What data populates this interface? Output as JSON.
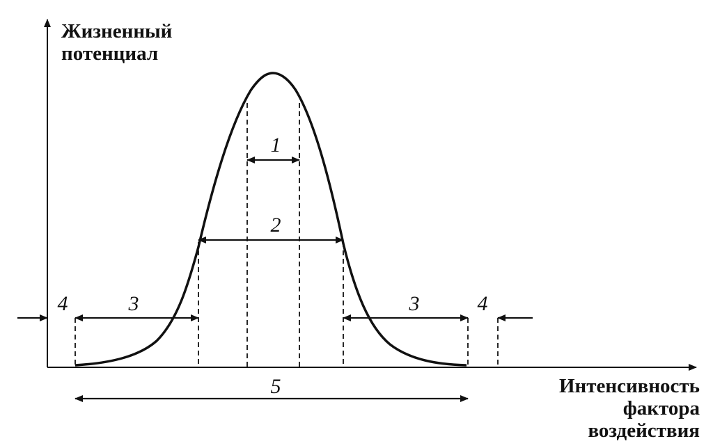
{
  "y_axis": {
    "label_lines": [
      "Жизненный",
      "потенциал"
    ]
  },
  "x_axis": {
    "label_lines": [
      "Интенсивность",
      "фактора",
      "воздействия"
    ]
  },
  "zones": {
    "optimum": "1",
    "comfort": "2",
    "pessimum_left": "3",
    "pessimum_right": "3",
    "lethal_left": "4",
    "lethal_right": "4",
    "tolerance": "5"
  }
}
